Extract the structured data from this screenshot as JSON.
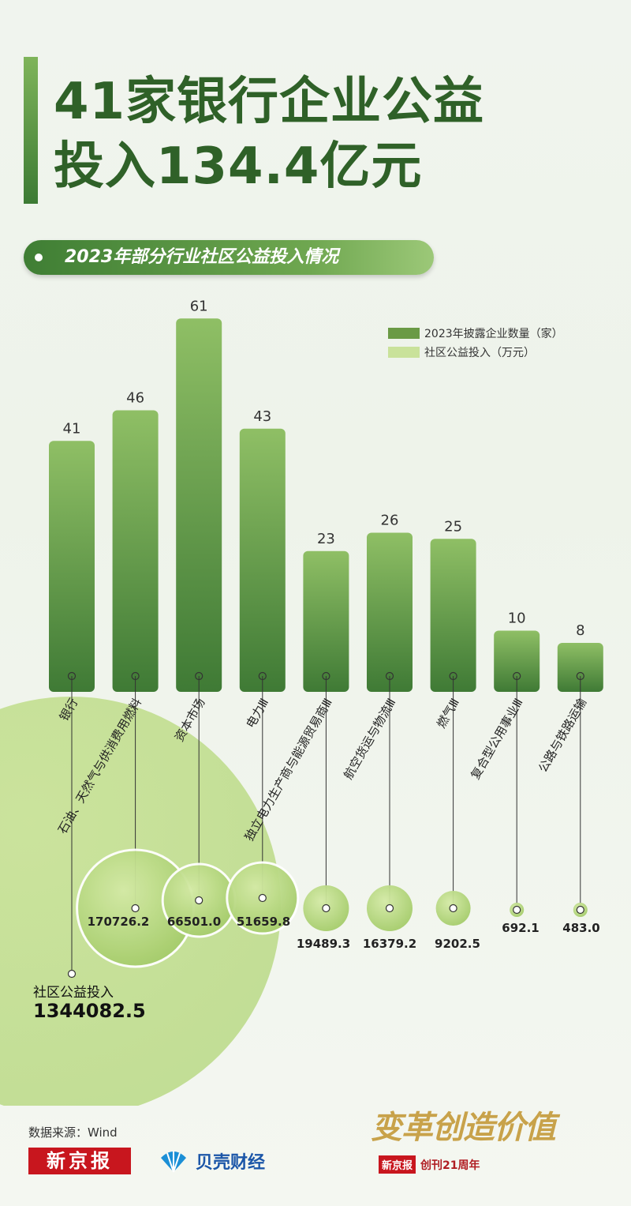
{
  "title_line1": "41家银行企业公益",
  "title_line2": "投入134.4亿元",
  "subtitle": "2023年部分行业社区公益投入情况",
  "legend": {
    "companies": {
      "label": "2023年披露企业数量（家）",
      "color": "#6a9a45"
    },
    "investment": {
      "label": "社区公益投入（万元）",
      "color": "#c9e29a"
    }
  },
  "chart_data": {
    "type": "bar",
    "categories": [
      "银行",
      "石油、天然气与供消费用燃料",
      "资本市场",
      "电力Ⅲ",
      "独立电力生产商与能源贸易商Ⅲ",
      "航空货运与物流Ⅲ",
      "燃气Ⅲ",
      "复合型公用事业Ⅲ",
      "公路与铁路运输"
    ],
    "series": [
      {
        "name": "2023年披露企业数量（家）",
        "values": [
          41,
          46,
          61,
          43,
          23,
          26,
          25,
          10,
          8
        ]
      },
      {
        "name": "社区公益投入（万元）",
        "values": [
          1344082.5,
          170726.2,
          66501.0,
          51659.8,
          19489.3,
          16379.2,
          9202.5,
          692.1,
          483.0
        ]
      }
    ],
    "value_labels": [
      "1344082.5",
      "170726.2",
      "66501.0",
      "51659.8",
      "19489.3",
      "16379.2",
      "9202.5",
      "692.1",
      "483.0"
    ],
    "first_label_prefix": "社区公益投入",
    "ylim": [
      0,
      61
    ]
  },
  "source": "数据来源：Wind",
  "logos": {
    "xjb": "新京报",
    "beike": "贝壳财经",
    "anniv_title": "变革创造价值",
    "anniv_badge": "新京报",
    "anniv_text": "创刊21周年"
  }
}
